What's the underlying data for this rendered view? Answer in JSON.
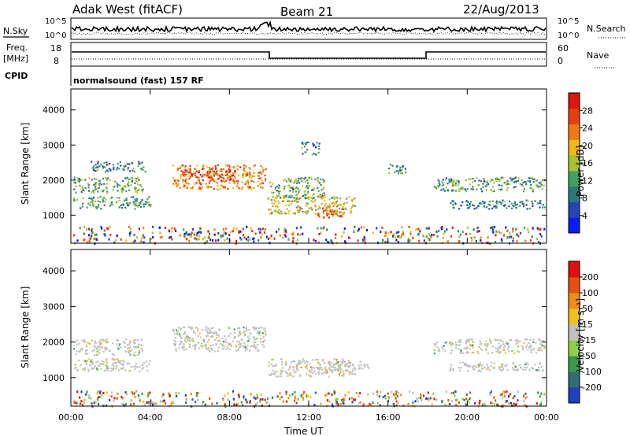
{
  "header": {
    "radar": "Adak West (fitACF)",
    "beam": "Beam 21",
    "date": "22/Aug/2013"
  },
  "panels": {
    "nsky": {
      "label": "N.Sky",
      "ticks": [
        "10^5",
        "10^0"
      ],
      "right_ticks": [
        "10^5",
        "10^0"
      ],
      "right_label": "N.Search"
    },
    "freq": {
      "label_lines": [
        "Freq.",
        "[MHz]"
      ],
      "ticks": [
        "18",
        "8"
      ],
      "right_ticks": [
        "60",
        "0"
      ],
      "right_label": "Nave",
      "cpid_label": "CPID",
      "cpid_text": "normalsound (fast) 157 RF"
    }
  },
  "chart_data": [
    {
      "type": "heatmap",
      "name": "power",
      "ylabel": "Slant Range [km]",
      "ylim": [
        200,
        4600
      ],
      "yticks": [
        "1000",
        "2000",
        "3000",
        "4000"
      ],
      "xlim": [
        0,
        24
      ],
      "colorbar": {
        "label": "Power [dB]",
        "range": [
          0,
          32
        ],
        "ticks": [
          "4",
          "8",
          "12",
          "16",
          "20",
          "24",
          "28"
        ],
        "colors": [
          "#0b1cf0",
          "#2545b8",
          "#2a7a7a",
          "#43a063",
          "#a9c233",
          "#f0b81b",
          "#f07a14",
          "#e8400c",
          "#d9180a"
        ]
      },
      "regions": [
        {
          "t0": 0.1,
          "t1": 4.0,
          "r0": 1200,
          "r1": 1550,
          "level": 0.36
        },
        {
          "t0": 0.1,
          "t1": 3.6,
          "r0": 1650,
          "r1": 2100,
          "level": 0.4
        },
        {
          "t0": 1.0,
          "t1": 3.8,
          "r0": 2250,
          "r1": 2550,
          "level": 0.32
        },
        {
          "t0": 5.1,
          "t1": 9.8,
          "r0": 1750,
          "r1": 2450,
          "level": 0.72
        },
        {
          "t0": 5.6,
          "t1": 8.3,
          "r0": 2000,
          "r1": 2350,
          "level": 0.86
        },
        {
          "t0": 9.9,
          "t1": 14.3,
          "r0": 1050,
          "r1": 1550,
          "level": 0.55
        },
        {
          "t0": 12.3,
          "t1": 13.8,
          "r0": 950,
          "r1": 1250,
          "level": 0.82
        },
        {
          "t0": 10.0,
          "t1": 12.8,
          "r0": 1500,
          "r1": 2100,
          "level": 0.42
        },
        {
          "t0": 16.0,
          "t1": 16.9,
          "r0": 2200,
          "r1": 2500,
          "level": 0.35
        },
        {
          "t0": 18.3,
          "t1": 23.9,
          "r0": 1700,
          "r1": 2100,
          "level": 0.36
        },
        {
          "t0": 19.0,
          "t1": 23.9,
          "r0": 1200,
          "r1": 1450,
          "level": 0.28
        },
        {
          "t0": 11.6,
          "t1": 12.5,
          "r0": 2750,
          "r1": 3100,
          "level": 0.3
        },
        {
          "t0": 0.1,
          "t1": 23.9,
          "r0": 220,
          "r1": 700,
          "level": 0.5
        }
      ]
    },
    {
      "type": "heatmap",
      "name": "velocity",
      "ylabel": "Slant Range [km]",
      "ylim": [
        200,
        4600
      ],
      "yticks": [
        "1000",
        "2000",
        "3000",
        "4000"
      ],
      "xlabel": "Time UT",
      "xticks": [
        "00:00",
        "04:00",
        "08:00",
        "12:00",
        "16:00",
        "20:00",
        "00:00"
      ],
      "xlim": [
        0,
        24
      ],
      "colorbar": {
        "label": "Velocity [m s⁻¹]",
        "ticks": [
          "200",
          "100",
          "50",
          "15",
          "-15",
          "-50",
          "-100",
          "-200"
        ],
        "colors": [
          "#2040c0",
          "#2f6f6f",
          "#3d9a4a",
          "#8fd047",
          "#c0c0c0",
          "#f0c020",
          "#f08c18",
          "#e85010",
          "#e01010"
        ]
      },
      "regions": [
        {
          "t0": 0.1,
          "t1": 4.0,
          "r0": 1200,
          "r1": 1550,
          "level": 0.45
        },
        {
          "t0": 0.1,
          "t1": 3.6,
          "r0": 1650,
          "r1": 2100,
          "level": 0.45
        },
        {
          "t0": 5.1,
          "t1": 9.8,
          "r0": 1750,
          "r1": 2450,
          "level": 0.48
        },
        {
          "t0": 9.9,
          "t1": 14.3,
          "r0": 1050,
          "r1": 1550,
          "level": 0.6
        },
        {
          "t0": 13.0,
          "t1": 15.0,
          "r0": 1200,
          "r1": 1500,
          "level": 0.3
        },
        {
          "t0": 18.3,
          "t1": 23.9,
          "r0": 1700,
          "r1": 2100,
          "level": 0.45
        },
        {
          "t0": 19.0,
          "t1": 23.9,
          "r0": 1200,
          "r1": 1450,
          "level": 0.45
        },
        {
          "t0": 0.1,
          "t1": 23.9,
          "r0": 220,
          "r1": 650,
          "level": 0.55
        }
      ]
    }
  ]
}
